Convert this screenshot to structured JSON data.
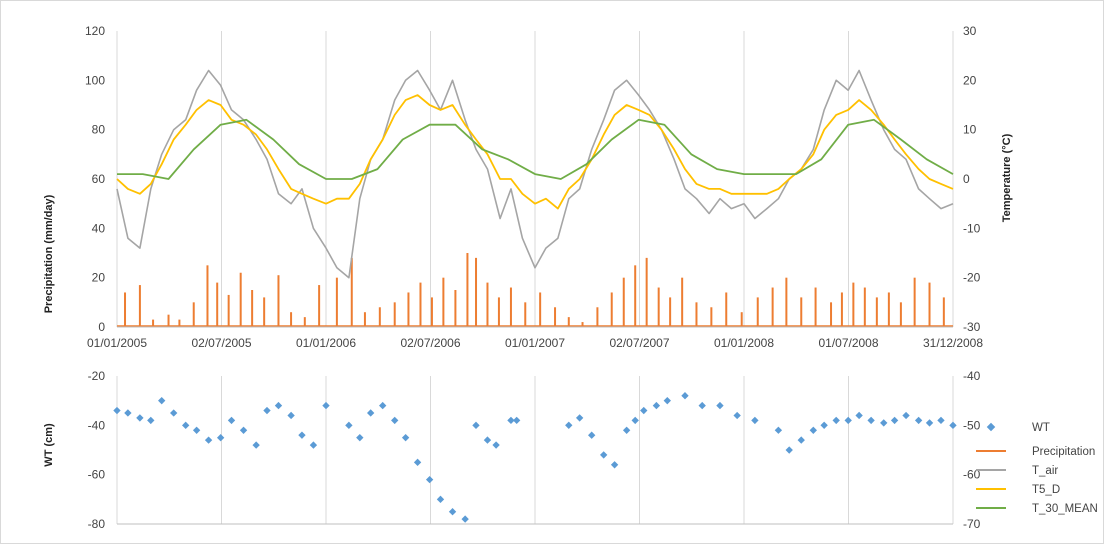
{
  "colors": {
    "precipitation": "#ED7D31",
    "t_air": "#A5A5A5",
    "t5_d": "#FFC000",
    "t_30_mean": "#70AD47",
    "wt": "#5B9BD5",
    "grid": "#D9D9D9"
  },
  "chart_data": [
    {
      "type": "line",
      "x_type": "date",
      "x_range": [
        "2005-01-01",
        "2008-12-31"
      ],
      "x_tick_labels": [
        "01/01/2005",
        "02/07/2005",
        "01/01/2006",
        "02/07/2006",
        "01/01/2007",
        "02/07/2007",
        "01/01/2008",
        "01/07/2008",
        "31/12/2008"
      ],
      "y_left": {
        "label": "Precipitation (mm/day)",
        "range": [
          0,
          120
        ],
        "ticks": [
          "0",
          "20",
          "40",
          "60",
          "80",
          "100",
          "120"
        ]
      },
      "y_right": {
        "label": "Temperature (°C)",
        "range": [
          -30,
          30
        ],
        "ticks": [
          "-30",
          "-20",
          "-10",
          "0",
          "10",
          "20",
          "30"
        ]
      },
      "grid": "vertical",
      "series": [
        {
          "name": "Precipitation",
          "type": "column",
          "axis": "left",
          "x": [
            "2005-01-15",
            "2005-02-10",
            "2005-03-05",
            "2005-04-01",
            "2005-04-20",
            "2005-05-15",
            "2005-06-08",
            "2005-06-25",
            "2005-07-15",
            "2005-08-05",
            "2005-08-25",
            "2005-09-15",
            "2005-10-10",
            "2005-11-01",
            "2005-11-25",
            "2005-12-20",
            "2006-01-20",
            "2006-02-15",
            "2006-03-10",
            "2006-04-05",
            "2006-05-01",
            "2006-05-25",
            "2006-06-15",
            "2006-07-05",
            "2006-07-25",
            "2006-08-15",
            "2006-09-05",
            "2006-09-20",
            "2006-10-10",
            "2006-10-30",
            "2006-11-20",
            "2006-12-15",
            "2007-01-10",
            "2007-02-05",
            "2007-03-01",
            "2007-03-25",
            "2007-04-20",
            "2007-05-15",
            "2007-06-05",
            "2007-06-25",
            "2007-07-15",
            "2007-08-05",
            "2007-08-25",
            "2007-09-15",
            "2007-10-10",
            "2007-11-05",
            "2007-12-01",
            "2007-12-28",
            "2008-01-25",
            "2008-02-20",
            "2008-03-15",
            "2008-04-10",
            "2008-05-05",
            "2008-06-01",
            "2008-06-20",
            "2008-07-10",
            "2008-07-30",
            "2008-08-20",
            "2008-09-10",
            "2008-10-01",
            "2008-10-25",
            "2008-11-20",
            "2008-12-15"
          ],
          "values": [
            14,
            17,
            3,
            5,
            3,
            10,
            25,
            18,
            13,
            22,
            15,
            12,
            21,
            6,
            4,
            17,
            20,
            28,
            6,
            8,
            10,
            14,
            18,
            12,
            20,
            15,
            30,
            28,
            18,
            12,
            16,
            10,
            14,
            8,
            4,
            2,
            8,
            14,
            20,
            25,
            28,
            16,
            12,
            20,
            10,
            8,
            14,
            6,
            12,
            16,
            20,
            12,
            16,
            10,
            14,
            18,
            16,
            12,
            14,
            10,
            20,
            18,
            12
          ]
        },
        {
          "name": "T_air",
          "type": "line",
          "axis": "right",
          "x": [
            "2005-01-01",
            "2005-01-20",
            "2005-02-10",
            "2005-03-01",
            "2005-03-20",
            "2005-04-10",
            "2005-05-01",
            "2005-05-20",
            "2005-06-10",
            "2005-07-01",
            "2005-07-20",
            "2005-08-10",
            "2005-09-01",
            "2005-09-20",
            "2005-10-10",
            "2005-11-01",
            "2005-11-20",
            "2005-12-10",
            "2006-01-01",
            "2006-01-20",
            "2006-02-10",
            "2006-03-01",
            "2006-03-20",
            "2006-04-10",
            "2006-05-01",
            "2006-05-20",
            "2006-06-10",
            "2006-07-01",
            "2006-07-20",
            "2006-08-10",
            "2006-09-01",
            "2006-09-20",
            "2006-10-10",
            "2006-11-01",
            "2006-11-20",
            "2006-12-10",
            "2007-01-01",
            "2007-01-20",
            "2007-02-10",
            "2007-03-01",
            "2007-03-20",
            "2007-04-10",
            "2007-05-01",
            "2007-05-20",
            "2007-06-10",
            "2007-07-01",
            "2007-07-20",
            "2007-08-10",
            "2007-09-01",
            "2007-09-20",
            "2007-10-10",
            "2007-11-01",
            "2007-11-20",
            "2007-12-10",
            "2008-01-01",
            "2008-01-20",
            "2008-02-10",
            "2008-03-01",
            "2008-03-20",
            "2008-04-10",
            "2008-05-01",
            "2008-05-20",
            "2008-06-10",
            "2008-07-01",
            "2008-07-20",
            "2008-08-10",
            "2008-09-01",
            "2008-09-20",
            "2008-10-10",
            "2008-11-01",
            "2008-11-20",
            "2008-12-10",
            "2008-12-31"
          ],
          "values": [
            -2,
            -12,
            -14,
            -2,
            5,
            10,
            12,
            18,
            22,
            19,
            14,
            12,
            8,
            4,
            -3,
            -5,
            -2,
            -10,
            -14,
            -18,
            -20,
            -4,
            4,
            8,
            16,
            20,
            22,
            18,
            14,
            20,
            12,
            6,
            2,
            -8,
            -2,
            -12,
            -18,
            -14,
            -12,
            -4,
            -2,
            6,
            12,
            18,
            20,
            17,
            14,
            10,
            4,
            -2,
            -4,
            -7,
            -4,
            -6,
            -5,
            -8,
            -6,
            -4,
            0,
            2,
            6,
            14,
            20,
            18,
            22,
            16,
            10,
            6,
            4,
            -2,
            -4,
            -6,
            -5
          ]
        },
        {
          "name": "T5_D",
          "type": "line",
          "axis": "right",
          "x": [
            "2005-01-01",
            "2005-01-20",
            "2005-02-10",
            "2005-03-01",
            "2005-03-20",
            "2005-04-10",
            "2005-05-01",
            "2005-05-20",
            "2005-06-10",
            "2005-07-01",
            "2005-07-20",
            "2005-08-10",
            "2005-09-01",
            "2005-09-20",
            "2005-10-10",
            "2005-11-01",
            "2005-11-20",
            "2005-12-10",
            "2006-01-01",
            "2006-01-20",
            "2006-02-10",
            "2006-03-01",
            "2006-03-20",
            "2006-04-10",
            "2006-05-01",
            "2006-05-20",
            "2006-06-10",
            "2006-07-01",
            "2006-07-20",
            "2006-08-10",
            "2006-09-01",
            "2006-09-20",
            "2006-10-10",
            "2006-11-01",
            "2006-11-20",
            "2006-12-10",
            "2007-01-01",
            "2007-01-20",
            "2007-02-10",
            "2007-03-01",
            "2007-03-20",
            "2007-04-10",
            "2007-05-01",
            "2007-05-20",
            "2007-06-10",
            "2007-07-01",
            "2007-07-20",
            "2007-08-10",
            "2007-09-01",
            "2007-09-20",
            "2007-10-10",
            "2007-11-01",
            "2007-11-20",
            "2007-12-10",
            "2008-01-01",
            "2008-01-20",
            "2008-02-10",
            "2008-03-01",
            "2008-03-20",
            "2008-04-10",
            "2008-05-01",
            "2008-05-20",
            "2008-06-10",
            "2008-07-01",
            "2008-07-20",
            "2008-08-10",
            "2008-09-01",
            "2008-09-20",
            "2008-10-10",
            "2008-11-01",
            "2008-11-20",
            "2008-12-10",
            "2008-12-31"
          ],
          "values": [
            0,
            -2,
            -3,
            -1,
            3,
            8,
            11,
            14,
            16,
            15,
            12,
            11,
            9,
            6,
            2,
            -2,
            -3,
            -4,
            -5,
            -4,
            -4,
            -1,
            4,
            8,
            13,
            16,
            17,
            15,
            14,
            15,
            11,
            8,
            5,
            0,
            0,
            -3,
            -5,
            -4,
            -6,
            -2,
            0,
            4,
            9,
            13,
            15,
            14,
            13,
            10,
            6,
            2,
            -1,
            -2,
            -2,
            -3,
            -3,
            -3,
            -3,
            -2,
            0,
            2,
            5,
            10,
            13,
            14,
            16,
            14,
            11,
            8,
            5,
            2,
            0,
            -1,
            -2
          ]
        },
        {
          "name": "T_30_MEAN",
          "type": "line",
          "axis": "right",
          "x": [
            "2005-01-01",
            "2005-02-15",
            "2005-04-01",
            "2005-05-15",
            "2005-07-01",
            "2005-08-15",
            "2005-10-01",
            "2005-11-15",
            "2006-01-01",
            "2006-02-15",
            "2006-04-01",
            "2006-05-15",
            "2006-07-01",
            "2006-08-15",
            "2006-10-01",
            "2006-11-15",
            "2007-01-01",
            "2007-02-15",
            "2007-04-01",
            "2007-05-15",
            "2007-07-01",
            "2007-08-15",
            "2007-10-01",
            "2007-11-15",
            "2008-01-01",
            "2008-02-15",
            "2008-04-01",
            "2008-05-15",
            "2008-07-01",
            "2008-08-15",
            "2008-10-01",
            "2008-11-15",
            "2008-12-31"
          ],
          "values": [
            1,
            1,
            0,
            6,
            11,
            12,
            8,
            3,
            0,
            0,
            2,
            8,
            11,
            11,
            6,
            4,
            1,
            0,
            3,
            8,
            12,
            11,
            5,
            2,
            1,
            1,
            1,
            4,
            11,
            12,
            8,
            4,
            1
          ]
        }
      ]
    },
    {
      "type": "scatter",
      "x_type": "date",
      "x_range": [
        "2005-01-01",
        "2008-12-31"
      ],
      "y_left": {
        "label": "WT (cm)",
        "range": [
          -80,
          -20
        ],
        "ticks": [
          "-80",
          "-60",
          "-40",
          "-20"
        ]
      },
      "y_right": {
        "label": "",
        "range": [
          -70,
          -40
        ],
        "ticks": [
          "-70",
          "-60",
          "-50",
          "-40"
        ]
      },
      "grid": "vertical",
      "series": [
        {
          "name": "WT",
          "x": [
            "2005-01-01",
            "2005-01-20",
            "2005-02-10",
            "2005-03-01",
            "2005-03-20",
            "2005-04-10",
            "2005-05-01",
            "2005-05-20",
            "2005-06-10",
            "2005-07-01",
            "2005-07-20",
            "2005-08-10",
            "2005-09-01",
            "2005-09-20",
            "2005-10-10",
            "2005-11-01",
            "2005-11-20",
            "2005-12-10",
            "2006-01-01",
            "2006-02-10",
            "2006-03-01",
            "2006-03-20",
            "2006-04-10",
            "2006-05-01",
            "2006-05-20",
            "2006-06-10",
            "2006-07-01",
            "2006-07-20",
            "2006-08-10",
            "2006-09-01",
            "2006-09-20",
            "2006-10-10",
            "2006-10-25",
            "2006-11-20",
            "2006-11-30",
            "2007-03-01",
            "2007-03-20",
            "2007-04-10",
            "2007-05-01",
            "2007-05-20",
            "2007-06-10",
            "2007-06-25",
            "2007-07-10",
            "2007-08-01",
            "2007-08-20",
            "2007-09-20",
            "2007-10-20",
            "2007-11-20",
            "2007-12-20",
            "2008-01-20",
            "2008-03-01",
            "2008-03-20",
            "2008-04-10",
            "2008-05-01",
            "2008-05-20",
            "2008-06-10",
            "2008-07-01",
            "2008-07-20",
            "2008-08-10",
            "2008-09-01",
            "2008-09-20",
            "2008-10-10",
            "2008-11-01",
            "2008-11-20",
            "2008-12-10",
            "2008-12-31"
          ],
          "values": [
            -34,
            -35,
            -37,
            -38,
            -30,
            -35,
            -40,
            -42,
            -46,
            -45,
            -38,
            -42,
            -48,
            -34,
            -32,
            -36,
            -44,
            -48,
            -32,
            -40,
            -45,
            -35,
            -32,
            -38,
            -45,
            -55,
            -62,
            -70,
            -75,
            -78,
            -40,
            -46,
            -48,
            -38,
            -38,
            -40,
            -37,
            -44,
            -52,
            -56,
            -42,
            -38,
            -34,
            -32,
            -30,
            -28,
            -32,
            -32,
            -36,
            -38,
            -42,
            -50,
            -46,
            -42,
            -40,
            -38,
            -38,
            -36,
            -38,
            -39,
            -38,
            -36,
            -38,
            -39,
            -38,
            -40
          ]
        }
      ]
    }
  ]
}
